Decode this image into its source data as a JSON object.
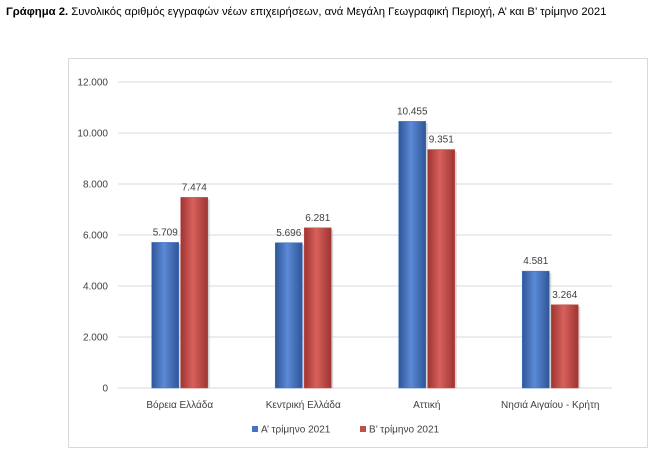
{
  "title": {
    "prefix": "Γράφημα 2.",
    "text": " Συνολικός αριθμός εγγραφών νέων επιχειρήσεων, ανά Μεγάλη Γεωγραφική Περιοχή, Α’ και Β’ τρίμηνο 2021"
  },
  "colors": {
    "series_a": "#4472C4",
    "series_b": "#C0504D"
  },
  "chart_data": {
    "type": "bar",
    "categories": [
      "Βόρεια Ελλάδα",
      "Κεντρική Ελλάδα",
      "Αττική",
      "Νησιά Αιγαίου - Κρήτη"
    ],
    "series": [
      {
        "name": "Α’ τρίμηνο 2021",
        "values": [
          5709,
          5696,
          10455,
          4581
        ],
        "labels": [
          "5.709",
          "5.696",
          "10.455",
          "4.581"
        ]
      },
      {
        "name": "Β’ τρίμηνο 2021",
        "values": [
          7474,
          6281,
          9351,
          3264
        ],
        "labels": [
          "7.474",
          "6.281",
          "9.351",
          "3.264"
        ]
      }
    ],
    "ylim": [
      0,
      12000
    ],
    "yticks": [
      0,
      2000,
      4000,
      6000,
      8000,
      10000,
      12000
    ],
    "ytick_labels": [
      "0",
      "2.000",
      "4.000",
      "6.000",
      "8.000",
      "10.000",
      "12.000"
    ],
    "grid": true,
    "legend_position": "bottom",
    "xlabel": "",
    "ylabel": ""
  }
}
